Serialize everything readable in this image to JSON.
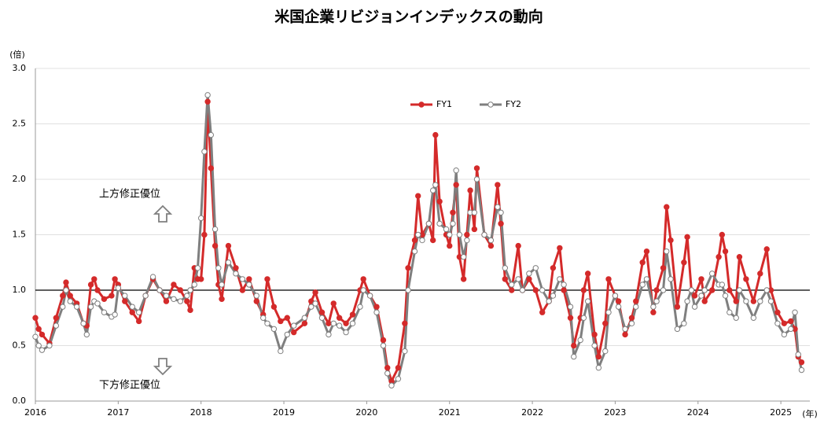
{
  "chart_data": {
    "type": "line",
    "title": "米国企業リビジョンインデックスの動向",
    "y_unit_label": "(倍)",
    "x_unit_label": "(年)",
    "annotations": [
      "上方修正優位",
      "下方修正優位"
    ],
    "reference_line": 1,
    "grid": true,
    "legend_position": "top",
    "xlim": [
      2016,
      2025.35
    ],
    "xticks": [
      2016,
      2017,
      2018,
      2019,
      2020,
      2021,
      2022,
      2023,
      2024,
      2025
    ],
    "ylim": [
      0,
      3
    ],
    "yticks": [
      {
        "value": 0,
        "label": "0.0"
      },
      {
        "value": 0.5,
        "label": "0.5"
      },
      {
        "value": 1,
        "label": "1.0"
      },
      {
        "value": 1.5,
        "label": "1.5"
      },
      {
        "value": 2,
        "label": "2.0"
      },
      {
        "value": 2.5,
        "label": "2.5"
      },
      {
        "value": 3,
        "label": "3.0"
      }
    ],
    "x": [
      2016,
      2016.04,
      2016.08,
      2016.17,
      2016.25,
      2016.33,
      2016.37,
      2016.42,
      2016.5,
      2016.58,
      2016.62,
      2016.67,
      2016.71,
      2016.75,
      2016.83,
      2016.92,
      2016.96,
      2017,
      2017.08,
      2017.17,
      2017.25,
      2017.33,
      2017.42,
      2017.5,
      2017.58,
      2017.67,
      2017.75,
      2017.83,
      2017.87,
      2017.92,
      2017.96,
      2018,
      2018.04,
      2018.08,
      2018.12,
      2018.17,
      2018.21,
      2018.25,
      2018.33,
      2018.42,
      2018.5,
      2018.58,
      2018.67,
      2018.75,
      2018.8,
      2018.88,
      2018.96,
      2019.04,
      2019.12,
      2019.25,
      2019.33,
      2019.38,
      2019.46,
      2019.54,
      2019.6,
      2019.67,
      2019.75,
      2019.83,
      2019.92,
      2019.96,
      2020.04,
      2020.12,
      2020.2,
      2020.25,
      2020.3,
      2020.38,
      2020.46,
      2020.5,
      2020.58,
      2020.62,
      2020.67,
      2020.75,
      2020.8,
      2020.83,
      2020.88,
      2020.96,
      2021,
      2021.04,
      2021.08,
      2021.12,
      2021.17,
      2021.21,
      2021.25,
      2021.3,
      2021.33,
      2021.42,
      2021.5,
      2021.58,
      2021.62,
      2021.67,
      2021.75,
      2021.83,
      2021.88,
      2021.96,
      2022.04,
      2022.12,
      2022.2,
      2022.25,
      2022.33,
      2022.38,
      2022.46,
      2022.5,
      2022.58,
      2022.62,
      2022.67,
      2022.75,
      2022.8,
      2022.88,
      2022.92,
      2023,
      2023.04,
      2023.12,
      2023.2,
      2023.25,
      2023.33,
      2023.38,
      2023.46,
      2023.5,
      2023.58,
      2023.62,
      2023.67,
      2023.75,
      2023.83,
      2023.87,
      2023.92,
      2023.96,
      2024.04,
      2024.08,
      2024.17,
      2024.25,
      2024.29,
      2024.33,
      2024.38,
      2024.46,
      2024.5,
      2024.58,
      2024.67,
      2024.75,
      2024.83,
      2024.88,
      2024.96,
      2025.04,
      2025.12,
      2025.17,
      2025.21,
      2025.25
    ],
    "series": [
      {
        "name": "FY1",
        "color": "#d42a2a",
        "marker_fill": "#d42a2a",
        "values": [
          0.75,
          0.65,
          0.6,
          0.52,
          0.75,
          0.95,
          1.07,
          0.95,
          0.88,
          0.7,
          0.68,
          1.05,
          1.1,
          1.0,
          0.92,
          0.95,
          1.1,
          1.05,
          0.9,
          0.8,
          0.72,
          0.95,
          1.1,
          1.0,
          0.9,
          1.05,
          1.0,
          0.9,
          0.82,
          1.2,
          1.1,
          1.1,
          1.5,
          2.7,
          2.1,
          1.4,
          1.05,
          0.92,
          1.4,
          1.2,
          1.0,
          1.1,
          0.9,
          0.78,
          1.1,
          0.85,
          0.72,
          0.75,
          0.62,
          0.7,
          0.9,
          0.98,
          0.8,
          0.7,
          0.88,
          0.75,
          0.7,
          0.78,
          1.0,
          1.1,
          0.95,
          0.85,
          0.55,
          0.3,
          0.18,
          0.3,
          0.7,
          1.2,
          1.45,
          1.85,
          1.5,
          1.6,
          1.45,
          2.4,
          1.8,
          1.5,
          1.4,
          1.7,
          1.95,
          1.3,
          1.1,
          1.5,
          1.9,
          1.55,
          2.1,
          1.5,
          1.4,
          1.95,
          1.6,
          1.1,
          1.0,
          1.4,
          1.0,
          1.1,
          1.0,
          0.8,
          0.9,
          1.2,
          1.38,
          1.0,
          0.75,
          0.5,
          0.75,
          1.0,
          1.15,
          0.6,
          0.4,
          0.7,
          1.1,
          0.95,
          0.9,
          0.6,
          0.75,
          0.9,
          1.25,
          1.35,
          0.8,
          1.0,
          1.2,
          1.75,
          1.45,
          0.85,
          1.25,
          1.48,
          1.0,
          0.95,
          1.1,
          0.9,
          1.0,
          1.3,
          1.5,
          1.35,
          1.0,
          0.9,
          1.3,
          1.1,
          0.9,
          1.15,
          1.37,
          1.0,
          0.8,
          0.7,
          0.72,
          0.65,
          0.4,
          0.35
        ]
      },
      {
        "name": "FY2",
        "color": "#7f7f7f",
        "marker_fill": "#ffffff",
        "values": [
          0.58,
          0.5,
          0.46,
          0.5,
          0.68,
          0.85,
          1.0,
          0.9,
          0.85,
          0.7,
          0.6,
          0.85,
          0.9,
          0.88,
          0.8,
          0.76,
          0.78,
          1.02,
          0.95,
          0.85,
          0.8,
          0.95,
          1.12,
          1.0,
          0.95,
          0.92,
          0.9,
          0.95,
          1.0,
          1.05,
          1.2,
          1.65,
          2.25,
          2.76,
          2.4,
          1.55,
          1.2,
          1.05,
          1.25,
          1.15,
          1.1,
          1.05,
          0.95,
          0.75,
          0.7,
          0.65,
          0.45,
          0.6,
          0.68,
          0.75,
          0.85,
          0.88,
          0.75,
          0.6,
          0.7,
          0.68,
          0.62,
          0.7,
          0.85,
          1.0,
          0.95,
          0.8,
          0.5,
          0.25,
          0.14,
          0.2,
          0.45,
          1.0,
          1.35,
          1.5,
          1.45,
          1.6,
          1.9,
          1.95,
          1.6,
          1.55,
          1.5,
          1.6,
          2.08,
          1.5,
          1.3,
          1.45,
          1.7,
          1.7,
          2.0,
          1.5,
          1.45,
          1.75,
          1.7,
          1.2,
          1.05,
          1.1,
          1.0,
          1.15,
          1.2,
          1.0,
          0.9,
          0.95,
          1.1,
          1.05,
          0.85,
          0.4,
          0.55,
          0.75,
          0.9,
          0.5,
          0.3,
          0.45,
          0.8,
          0.95,
          0.85,
          0.65,
          0.7,
          0.85,
          1.05,
          1.1,
          0.85,
          0.9,
          1.0,
          1.35,
          1.1,
          0.65,
          0.7,
          0.9,
          1.0,
          0.85,
          0.95,
          1.0,
          1.15,
          1.05,
          1.05,
          0.95,
          0.8,
          0.75,
          1.0,
          0.9,
          0.75,
          0.9,
          1.0,
          0.9,
          0.7,
          0.6,
          0.65,
          0.8,
          0.42,
          0.28
        ]
      }
    ]
  }
}
